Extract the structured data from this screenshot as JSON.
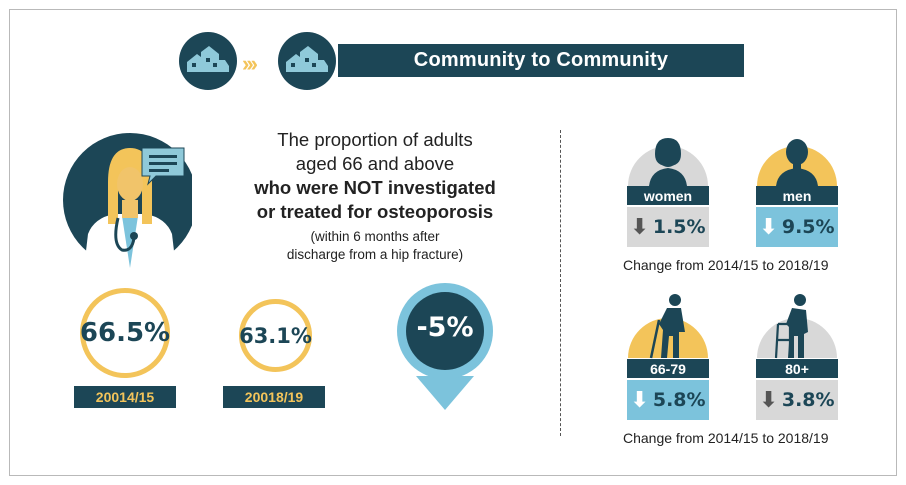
{
  "banner": {
    "title": "Community to Community"
  },
  "headline": {
    "line1": "The proportion of adults",
    "line2": "aged 66 and above",
    "line3": "who were NOT investigated",
    "line4": "or treated for osteoporosis"
  },
  "subnote": {
    "line1": "(within 6 months after",
    "line2": "discharge from a hip fracture)"
  },
  "stats": [
    {
      "value": "66.5%",
      "year": "20014/15"
    },
    {
      "value": "63.1%",
      "year": "20018/19"
    }
  ],
  "overall_change": "-5%",
  "groups": {
    "women": {
      "label": "women",
      "change": "1.5%",
      "direction": "down"
    },
    "men": {
      "label": "men",
      "change": "9.5%",
      "direction": "down"
    },
    "age_66_79": {
      "label": "66-79",
      "change": "5.8%",
      "direction": "down"
    },
    "age_80_plus": {
      "label": "80+",
      "change": "3.8%",
      "direction": "down"
    }
  },
  "change_note": "Change from 2014/15 to 2018/19",
  "colors": {
    "navy": "#1c4656",
    "gold": "#f3c45a",
    "light_blue": "#7cc3dc",
    "gray": "#d8d8d8"
  },
  "icons": [
    "house-icon",
    "chevrons-icon",
    "doctor-icon",
    "speech-bubble-icon",
    "woman-icon",
    "man-icon",
    "elderly-cane-icon",
    "elderly-walker-icon",
    "down-arrow-icon"
  ]
}
